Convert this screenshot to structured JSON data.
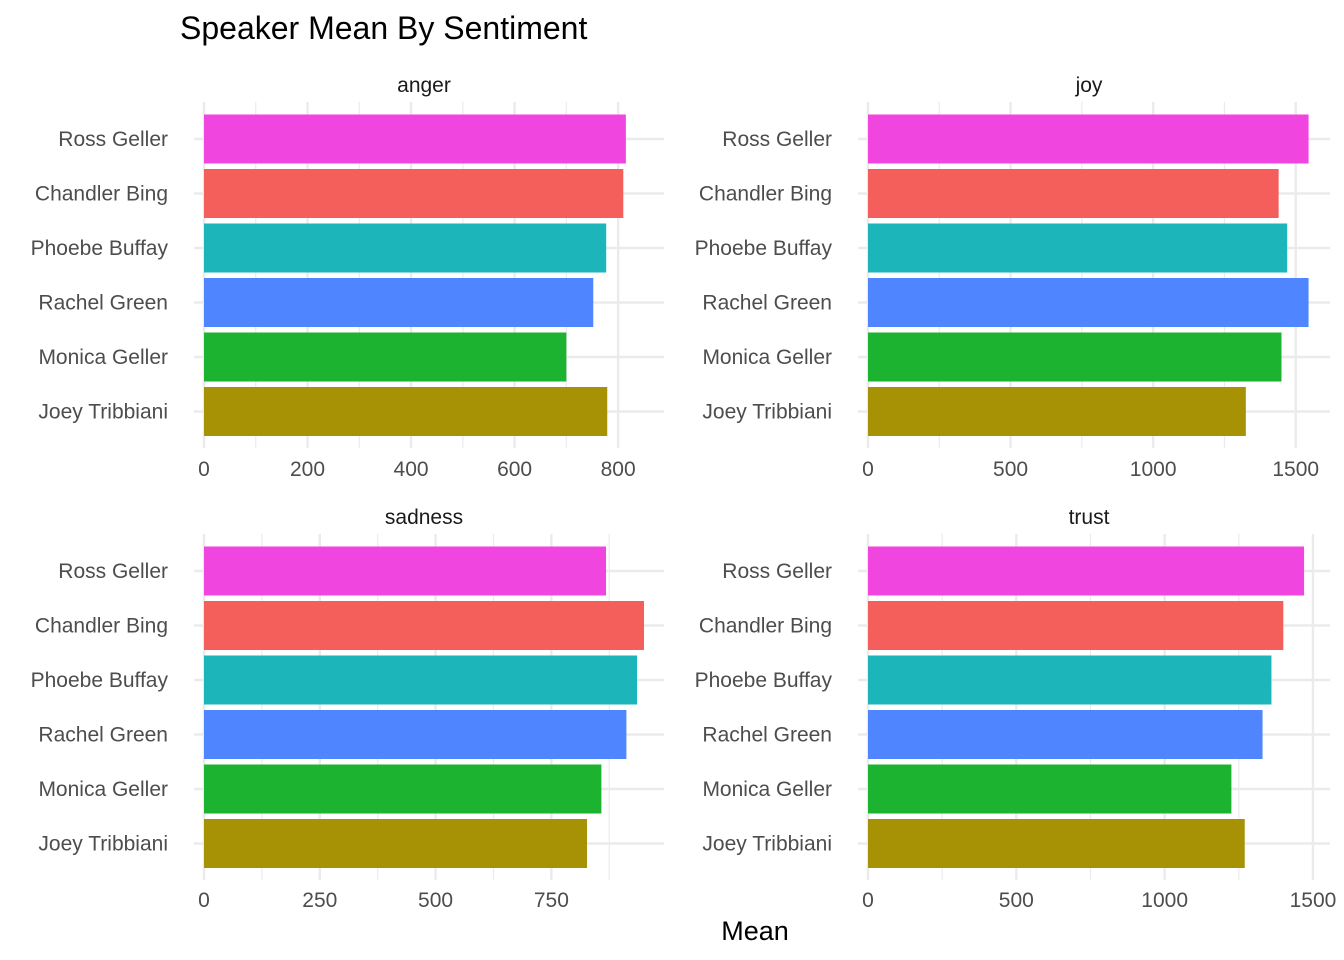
{
  "chart_data": {
    "type": "bar",
    "orientation": "horizontal",
    "title": "Speaker Mean By Sentiment",
    "xlabel": "Mean",
    "ylabel": "",
    "categories": [
      "Ross Geller",
      "Chandler Bing",
      "Phoebe Buffay",
      "Rachel Green",
      "Monica Geller",
      "Joey Tribbiani"
    ],
    "colors": [
      "#F046DF",
      "#F45F5B",
      "#1BB5BA",
      "#4F86FF",
      "#1BB32F",
      "#A79205"
    ],
    "grid": true,
    "legend": "none",
    "facets": [
      {
        "name": "anger",
        "xlim": [
          0,
          850
        ],
        "ticks": [
          0,
          200,
          400,
          600,
          800
        ],
        "tick_labels": [
          "0",
          "200",
          "400",
          "600",
          "800"
        ],
        "values": [
          815,
          810,
          777,
          752,
          700,
          779
        ]
      },
      {
        "name": "joy",
        "xlim": [
          0,
          1550
        ],
        "ticks": [
          0,
          500,
          1000,
          1500
        ],
        "tick_labels": [
          "0",
          "500",
          "1000",
          "1500"
        ],
        "values": [
          1545,
          1440,
          1470,
          1545,
          1450,
          1325
        ]
      },
      {
        "name": "sadness",
        "xlim": [
          0,
          950
        ],
        "ticks": [
          0,
          250,
          500,
          750
        ],
        "tick_labels": [
          "0",
          "250",
          "500",
          "750"
        ],
        "values": [
          868,
          950,
          935,
          912,
          858,
          827
        ]
      },
      {
        "name": "trust",
        "xlim": [
          0,
          1490
        ],
        "ticks": [
          0,
          500,
          1000,
          1500
        ],
        "tick_labels": [
          "0",
          "500",
          "1000",
          "1500"
        ],
        "values": [
          1470,
          1400,
          1360,
          1330,
          1225,
          1270
        ]
      }
    ]
  }
}
